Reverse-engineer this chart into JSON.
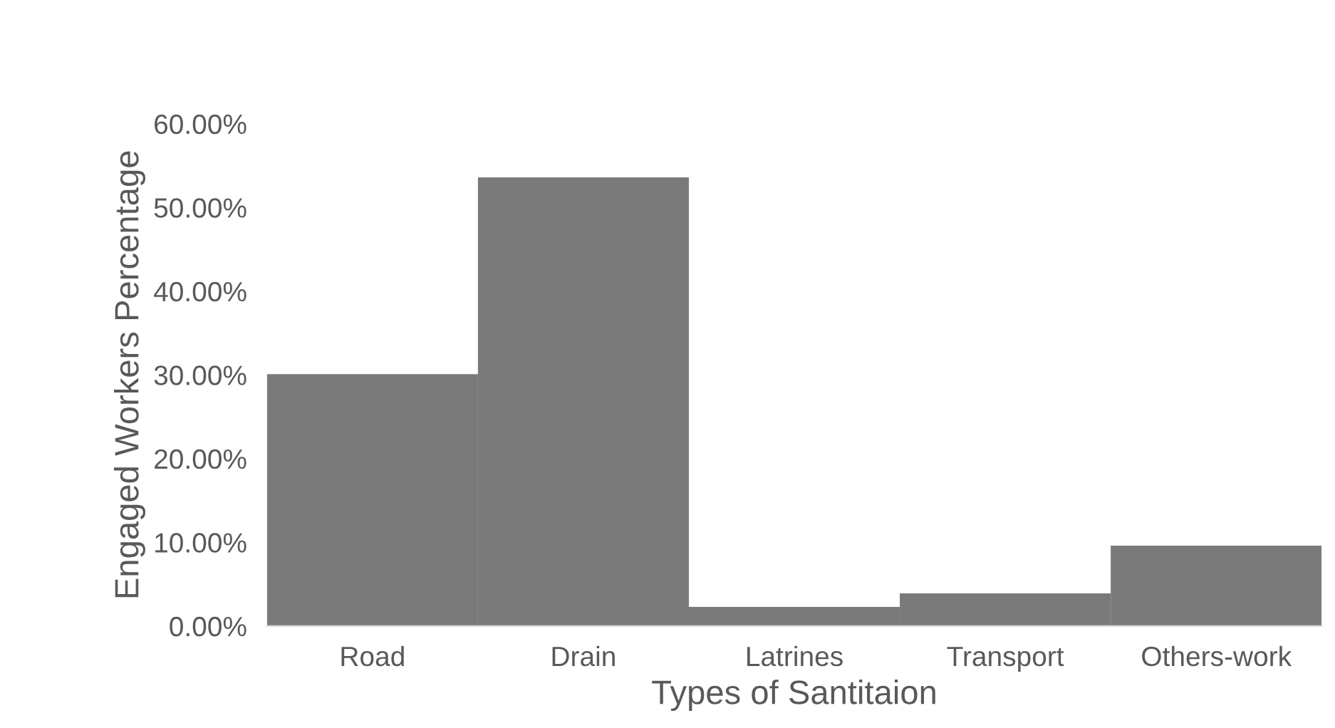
{
  "chart_data": {
    "type": "bar",
    "xlabel": "Types of Santitaion",
    "ylabel": "Engaged Workers Percentage",
    "categories": [
      "Road",
      "Drain",
      "Latrines",
      "Transport",
      "Others-work"
    ],
    "values": [
      30.1,
      53.6,
      2.3,
      3.9,
      9.6
    ],
    "color": "#7a7a7a",
    "ylim": [
      0,
      60
    ],
    "yticks": [
      {
        "value": 0,
        "label": "0.00%"
      },
      {
        "value": 10,
        "label": "10.00%"
      },
      {
        "value": 20,
        "label": "20.00%"
      },
      {
        "value": 30,
        "label": "30.00%"
      },
      {
        "value": 40,
        "label": "40.00%"
      },
      {
        "value": 50,
        "label": "50.00%"
      },
      {
        "value": 60,
        "label": "60.00%"
      }
    ],
    "grid": false
  }
}
